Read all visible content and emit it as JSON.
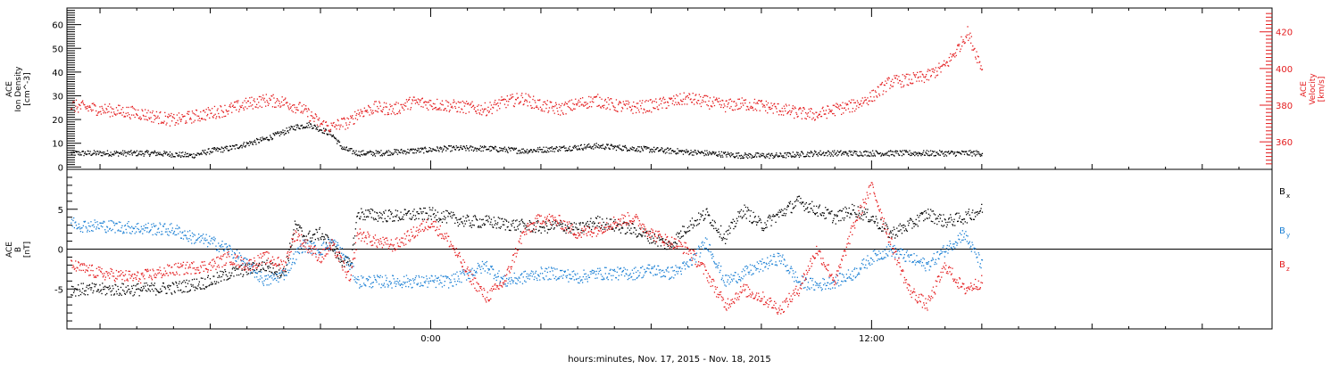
{
  "xlabel": "hours:minutes, Nov. 17, 2015 - Nov. 18, 2015",
  "x_tick_labels": [
    "0:00",
    "12:00"
  ],
  "colors": {
    "black": "#000000",
    "blue": "#1a7fd4",
    "red": "#e41a1c",
    "axis": "#000000"
  },
  "chart_data": [
    {
      "type": "scatter",
      "panel": "ace-density-velocity",
      "ylabel_left": [
        "ACE",
        "Ion Density",
        "[cm^-3]"
      ],
      "ylabel_right": [
        "ACE",
        "Velocity",
        "[km/s]"
      ],
      "x_unit": "hours relative to 2015-11-17 00:00",
      "xlim": [
        -9.9,
        22.9
      ],
      "ylim_left": [
        -1,
        67
      ],
      "yticks_left": [
        "0",
        "10",
        "20",
        "30",
        "40",
        "50",
        "60"
      ],
      "ylim_right": [
        345,
        433
      ],
      "yticks_right": [
        "360",
        "380",
        "400",
        "420"
      ],
      "series": [
        {
          "axis": "left",
          "color": "#000000",
          "x": [
            -9.8,
            -8.5,
            -7.5,
            -6.5,
            -6,
            -5.5,
            -5,
            -4.5,
            -4,
            -3.7,
            -3.3,
            -3,
            -2.7,
            -2.4,
            -2,
            -1.5,
            -0.5,
            0.5,
            1.5,
            2.5,
            3.5,
            4.5,
            5.5,
            6.5,
            7.5,
            8.5,
            9.5,
            10.5,
            11.5,
            12.5,
            13.5,
            15
          ],
          "y": [
            6,
            6,
            6,
            5,
            7,
            8,
            10,
            12,
            15,
            17,
            18,
            16,
            14,
            8,
            6,
            6,
            7,
            8,
            8,
            7,
            8,
            9,
            8,
            7,
            6,
            5,
            5,
            6,
            6,
            6,
            6,
            6
          ]
        },
        {
          "axis": "right",
          "color": "#e41a1c",
          "x": [
            -9.8,
            -9,
            -8,
            -7.5,
            -7,
            -6.5,
            -6,
            -5.5,
            -5,
            -4.5,
            -4,
            -3.5,
            -3,
            -2.7,
            -2.5,
            -2.2,
            -2,
            -1.5,
            -1,
            -0.5,
            0,
            0.5,
            1,
            1.5,
            2,
            2.5,
            3,
            3.5,
            4,
            4.5,
            5,
            5.5,
            6,
            6.5,
            7,
            7.5,
            8,
            8.5,
            9,
            9.5,
            10,
            10.5,
            11,
            11.5,
            12,
            12.5,
            13,
            13.5,
            14,
            14.3,
            14.6,
            15
          ],
          "y": [
            380,
            378,
            376,
            374,
            372,
            374,
            376,
            378,
            381,
            383,
            382,
            378,
            370,
            368,
            370,
            371,
            376,
            379,
            378,
            382,
            381,
            380,
            379,
            378,
            382,
            384,
            380,
            378,
            381,
            383,
            380,
            379,
            380,
            382,
            384,
            382,
            380,
            381,
            380,
            378,
            376,
            375,
            378,
            380,
            385,
            393,
            394,
            396,
            402,
            410,
            420,
            400
          ]
        }
      ]
    },
    {
      "type": "scatter",
      "panel": "ace-b-components",
      "ylabel_left": [
        "ACE",
        "B",
        "[nT]"
      ],
      "x_unit": "hours relative to 2015-11-17 00:00",
      "xlim": [
        -9.9,
        22.9
      ],
      "ylim": [
        -10,
        10
      ],
      "yticks": [
        "-5",
        "0",
        "5"
      ],
      "series": [
        {
          "name": "Bx",
          "color": "#000000",
          "x": [
            -9.8,
            -9,
            -8,
            -7,
            -6,
            -5.5,
            -5,
            -4.5,
            -4,
            -3.7,
            -3.4,
            -3,
            -2.7,
            -2.5,
            -2.2,
            -2,
            -1.5,
            -1,
            0,
            1,
            1.5,
            2,
            2.5,
            3,
            3.5,
            4,
            4.5,
            5,
            5.5,
            6,
            6.5,
            7,
            7.5,
            8,
            8.5,
            9,
            9.5,
            10,
            10.5,
            11,
            11.5,
            12,
            12.5,
            13,
            13.5,
            14,
            14.5,
            15
          ],
          "y": [
            -5,
            -5,
            -5,
            -4.8,
            -4,
            -3,
            -2.5,
            -2,
            -3,
            3,
            1.5,
            2,
            0.5,
            -1,
            -2,
            4.5,
            4.3,
            4.2,
            4.5,
            3.5,
            3.5,
            3.2,
            3,
            2.8,
            3,
            2.5,
            3.5,
            3,
            2.5,
            1.5,
            0.5,
            3,
            4.5,
            1.5,
            5,
            3,
            4.5,
            6,
            5,
            4,
            5,
            4,
            2,
            3,
            4.5,
            3.5,
            4,
            5
          ]
        },
        {
          "name": "By",
          "color": "#1a7fd4",
          "x": [
            -9.8,
            -9.5,
            -9,
            -8,
            -7,
            -6.5,
            -6,
            -5.5,
            -5,
            -4.5,
            -4,
            -3.5,
            -3,
            -2.7,
            -2.5,
            -2.2,
            -2,
            -1.5,
            -1,
            0,
            0.5,
            1,
            1.5,
            2,
            2.5,
            3,
            3.5,
            4,
            4.5,
            5,
            5.5,
            6,
            6.5,
            7,
            7.5,
            8,
            8.5,
            9,
            9.5,
            10,
            10.5,
            11,
            11.5,
            12,
            12.5,
            13,
            13.5,
            14,
            14.5,
            15
          ],
          "y": [
            3.5,
            3,
            3,
            2.7,
            2.5,
            1.5,
            1,
            0,
            -2,
            -4,
            -3,
            0.5,
            0,
            1,
            0,
            -2,
            -4,
            -4,
            -4,
            -4,
            -4,
            -3,
            -2,
            -4,
            -3.5,
            -3,
            -3,
            -3.5,
            -3,
            -3,
            -3,
            -2.5,
            -3,
            -2,
            1,
            -4,
            -3,
            -2,
            -1,
            -4,
            -4.5,
            -4,
            -3,
            -1,
            0,
            -1,
            -2,
            0,
            2,
            -2
          ]
        },
        {
          "name": "Bz",
          "color": "#e41a1c",
          "x": [
            -9.8,
            -9,
            -8,
            -7,
            -6,
            -5.5,
            -5,
            -4.5,
            -4,
            -3.7,
            -3.5,
            -3,
            -2.7,
            -2.5,
            -2.2,
            -2,
            -1.5,
            -1,
            -0.5,
            0,
            0.5,
            1,
            1.5,
            2,
            2.5,
            3,
            3.5,
            4,
            4.5,
            5,
            5.5,
            6,
            6.5,
            7,
            7.5,
            8,
            8.5,
            9,
            9.5,
            10,
            10.5,
            11,
            11.5,
            12,
            12.5,
            13,
            13.5,
            14,
            14.5,
            15
          ],
          "y": [
            -2,
            -3,
            -3.5,
            -2.5,
            -2,
            -1,
            -2,
            -1,
            -2,
            2,
            1,
            -1,
            0.5,
            -1,
            -4,
            2,
            1,
            0.5,
            2,
            3.5,
            1,
            -3,
            -6,
            -4,
            2,
            4,
            3.5,
            2,
            2.5,
            3.5,
            4,
            2,
            1,
            0,
            -3,
            -7,
            -5,
            -6,
            -7.5,
            -5,
            0,
            -4,
            3,
            8,
            1,
            -5,
            -7,
            -2,
            -5,
            -4
          ]
        }
      ],
      "legend": [
        {
          "label": "B",
          "sub": "x",
          "color": "#000000"
        },
        {
          "label": "B",
          "sub": "y",
          "color": "#1a7fd4"
        },
        {
          "label": "B",
          "sub": "z",
          "color": "#e41a1c"
        }
      ]
    }
  ]
}
